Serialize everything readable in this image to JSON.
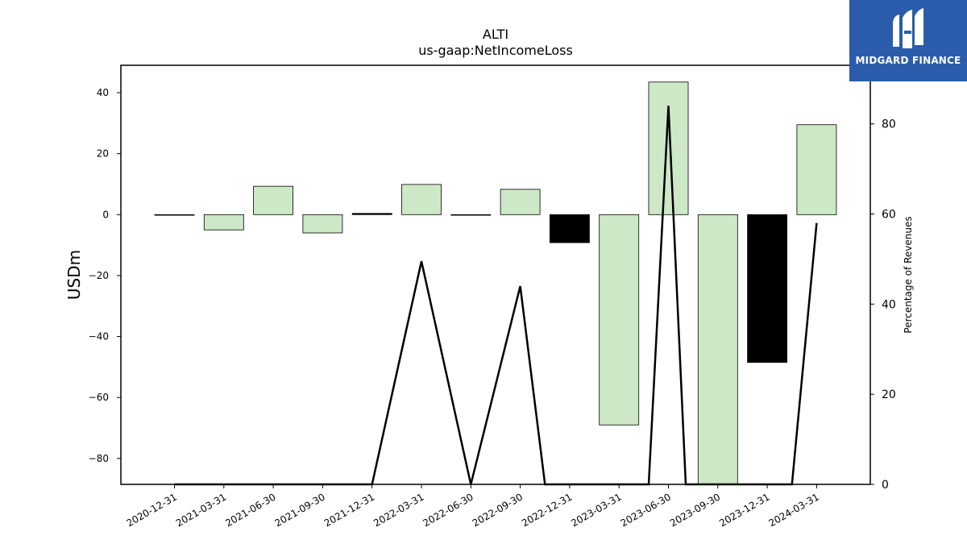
{
  "chart_data": {
    "type": "bar",
    "title": "ALTI",
    "subtitle": "us-gaap:NetIncomeLoss",
    "ylabel": "USDm",
    "y2label": "Percentage of Revenues",
    "ylim": [
      -88.5,
      49
    ],
    "y2lim": [
      0,
      93
    ],
    "yticks": [
      40,
      20,
      0,
      -20,
      -40,
      -60,
      -80
    ],
    "y2ticks": [
      0,
      20,
      40,
      60,
      80
    ],
    "categories": [
      "2020-12-31",
      "2021-03-31",
      "2021-06-30",
      "2021-09-30",
      "2021-12-31",
      "2022-03-31",
      "2022-06-30",
      "2022-09-30",
      "2022-12-31",
      "2023-03-31",
      "2023-06-30",
      "2023-09-30",
      "2023-12-31",
      "2024-03-31"
    ],
    "series": [
      {
        "values": [
          0,
          -5,
          9.3,
          -6,
          0.4,
          9.9,
          -0.2,
          8.3,
          -9.2,
          -69,
          43.5,
          -88.5,
          -48.5,
          29.5
        ],
        "bar_colors": [
          "#cde8c6",
          "#cde8c6",
          "#cde8c6",
          "#cde8c6",
          "#000000",
          "#cde8c6",
          "#000000",
          "#cde8c6",
          "#000000",
          "#cde8c6",
          "#cde8c6",
          "#cde8c6",
          "#000000",
          "#cde8c6"
        ]
      },
      {
        "type": "line",
        "axis": "right",
        "color": "#000000",
        "values": [
          0,
          0,
          0,
          0,
          0,
          49.5,
          0,
          44,
          0,
          0,
          84,
          0,
          0,
          58
        ],
        "x_positions": [
          0,
          1,
          2,
          3,
          4,
          5,
          6,
          7,
          7.5,
          9.6,
          10,
          10.35,
          12.5,
          13
        ]
      }
    ]
  },
  "logo": {
    "text": "MIDGARD FINANCE"
  }
}
